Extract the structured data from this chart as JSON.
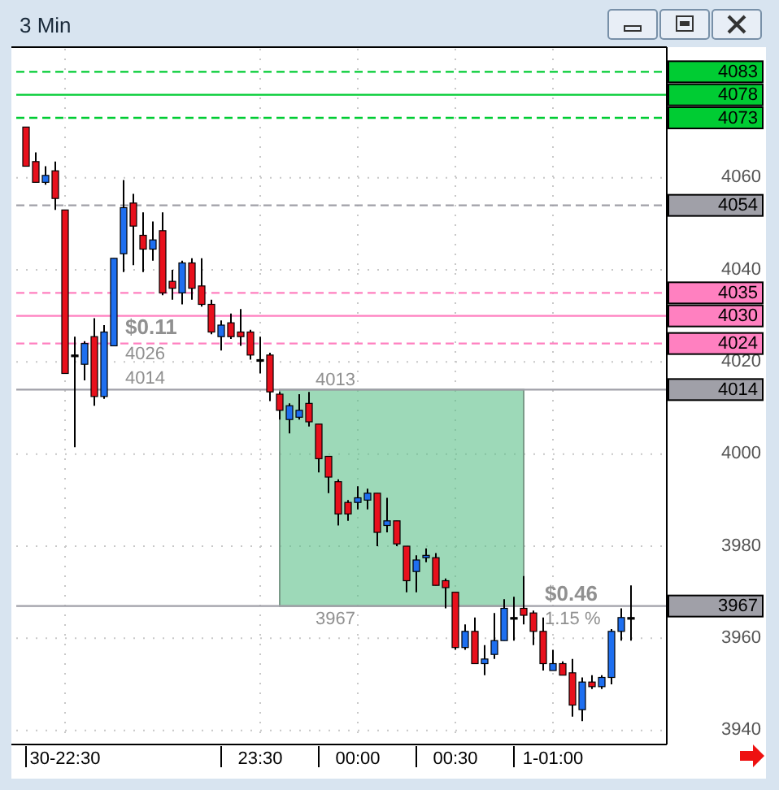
{
  "chart_data": {
    "type": "candlestick",
    "title": "3 Min",
    "categories": [
      null,
      null,
      null,
      null,
      "30-22:30",
      null,
      null,
      null,
      null,
      null,
      null,
      null,
      null,
      null,
      null,
      null,
      null,
      null,
      null,
      null,
      null,
      null,
      null,
      null,
      "23:30",
      null,
      null,
      null,
      null,
      null,
      null,
      null,
      null,
      null,
      "00:00",
      null,
      null,
      null,
      null,
      null,
      null,
      null,
      null,
      null,
      "00:30",
      null,
      null,
      null,
      null,
      null,
      null,
      null,
      null,
      null,
      "1-01:00",
      null,
      null,
      null,
      null,
      null,
      null,
      null,
      null
    ],
    "ohlc": [
      [
        4071,
        4071,
        4062.5,
        4062.5
      ],
      [
        4063.5,
        4065.5,
        4059,
        4059
      ],
      [
        4059,
        4062.5,
        4058.5,
        4060.5
      ],
      [
        4061.5,
        4063.5,
        4053,
        4055.5
      ],
      [
        4053,
        4053,
        4017.5,
        4017.5
      ],
      [
        4021.5,
        4025.5,
        4001.5,
        4021.5
      ],
      [
        4019.5,
        4024.5,
        4016,
        4024
      ],
      [
        4025.5,
        4029.5,
        4010.5,
        4012.5
      ],
      [
        4012.5,
        4028,
        4012,
        4026.5
      ],
      [
        4023.5,
        4042.5,
        4023.5,
        4042.5
      ],
      [
        4043.5,
        4059.5,
        4039.5,
        4053.5
      ],
      [
        4054.5,
        4056.5,
        4041,
        4049.5
      ],
      [
        4047.5,
        4052.5,
        4039.5,
        4044.5
      ],
      [
        4044.5,
        4050.5,
        4042,
        4046.5
      ],
      [
        4048.5,
        4052.5,
        4034.5,
        4035
      ],
      [
        4037.5,
        4040,
        4033.5,
        4036
      ],
      [
        4035,
        4042,
        4032.5,
        4041.5
      ],
      [
        4041.5,
        4042.5,
        4033.5,
        4036
      ],
      [
        4036.5,
        4042.5,
        4032,
        4032.5
      ],
      [
        4032.5,
        4033.5,
        4026,
        4026.5
      ],
      [
        4025.5,
        4029,
        4022.5,
        4028
      ],
      [
        4028.5,
        4030.5,
        4025,
        4025.5
      ],
      [
        4026.5,
        4031.5,
        4023.5,
        4025.5
      ],
      [
        4026.5,
        4027,
        4020.5,
        4021.5
      ],
      [
        4020.5,
        4025.5,
        4017.5,
        4020.5
      ],
      [
        4021.5,
        4022,
        4011.5,
        4013.5
      ],
      [
        4013,
        4013.5,
        4007.5,
        4009.5
      ],
      [
        4007.5,
        4011,
        4004.5,
        4010.5
      ],
      [
        4008,
        4013,
        4007.5,
        4009.5
      ],
      [
        4011,
        4013.5,
        4006,
        4007
      ],
      [
        4006.5,
        4006.5,
        3996,
        3999
      ],
      [
        3999.5,
        3999.5,
        3991.5,
        3995
      ],
      [
        3994,
        3994.5,
        3984.5,
        3987
      ],
      [
        3989.5,
        3990,
        3985.5,
        3987
      ],
      [
        3989.5,
        3993,
        3988,
        3990.5
      ],
      [
        3990,
        3992.5,
        3988,
        3991.5
      ],
      [
        3991.5,
        3991.5,
        3980,
        3983
      ],
      [
        3984.5,
        3990.5,
        3983,
        3985.5
      ],
      [
        3985.5,
        3985.5,
        3980,
        3980.5
      ],
      [
        3980,
        3980,
        3970,
        3972.5
      ],
      [
        3974.5,
        3978,
        3970,
        3977
      ],
      [
        3977.5,
        3979.5,
        3976.5,
        3978
      ],
      [
        3977.5,
        3978.5,
        3971.5,
        3971.5
      ],
      [
        3972.5,
        3973,
        3966.5,
        3971
      ],
      [
        3970,
        3970,
        3957.5,
        3958
      ],
      [
        3958,
        3963,
        3957.5,
        3961.5
      ],
      [
        3961.5,
        3964.5,
        3954.5,
        3954.5
      ],
      [
        3954.5,
        3958.5,
        3952,
        3955.5
      ],
      [
        3956.5,
        3965.5,
        3955.5,
        3959.5
      ],
      [
        3959.5,
        3968.5,
        3959.5,
        3966.5
      ],
      [
        3964.5,
        3969,
        3959.5,
        3964.5
      ],
      [
        3966.5,
        3973.5,
        3963,
        3965
      ],
      [
        3965.5,
        3966,
        3958.5,
        3961.5
      ],
      [
        3961.5,
        3964.5,
        3953,
        3954.5
      ],
      [
        3953,
        3957.5,
        3953,
        3954.5
      ],
      [
        3954.5,
        3955,
        3952,
        3952
      ],
      [
        3952.5,
        3955.5,
        3943,
        3945.5
      ],
      [
        3944.5,
        3951.5,
        3942,
        3950.5
      ],
      [
        3950.5,
        3952,
        3949,
        3949.5
      ],
      [
        3949.5,
        3952,
        3949,
        3951.5
      ],
      [
        3951.5,
        3962,
        3950,
        3961.5
      ],
      [
        3961.5,
        3966.5,
        3959.5,
        3964.5
      ],
      [
        3964.5,
        3971.5,
        3959.5,
        3964.5
      ]
    ],
    "colors": [
      "#e8101c",
      "#e8101c",
      "#1e6ff0",
      "#e8101c",
      "#e8101c",
      "#000000",
      "#1e6ff0",
      "#e8101c",
      "#1e6ff0",
      "#1e6ff0",
      "#1e6ff0",
      "#e8101c",
      "#e8101c",
      "#1e6ff0",
      "#e8101c",
      "#e8101c",
      "#1e6ff0",
      "#e8101c",
      "#e8101c",
      "#e8101c",
      "#1e6ff0",
      "#e8101c",
      "#e8101c",
      "#e8101c",
      "#000000",
      "#e8101c",
      "#e8101c",
      "#1e6ff0",
      "#1e6ff0",
      "#e8101c",
      "#e8101c",
      "#e8101c",
      "#e8101c",
      "#e8101c",
      "#1e6ff0",
      "#1e6ff0",
      "#e8101c",
      "#1e6ff0",
      "#e8101c",
      "#e8101c",
      "#1e6ff0",
      "#1e6ff0",
      "#e8101c",
      "#e8101c",
      "#e8101c",
      "#1e6ff0",
      "#e8101c",
      "#1e6ff0",
      "#1e6ff0",
      "#1e6ff0",
      "#000000",
      "#e8101c",
      "#e8101c",
      "#e8101c",
      "#1e6ff0",
      "#e8101c",
      "#e8101c",
      "#1e6ff0",
      "#e8101c",
      "#1e6ff0",
      "#1e6ff0",
      "#1e6ff0",
      "#000000"
    ],
    "ylim": [
      3938,
      4088
    ],
    "yticks": [
      3940,
      3960,
      3980,
      4000,
      4020,
      4040,
      4060
    ],
    "grid": true,
    "ref_lines": [
      {
        "axis": "y",
        "value": 4083,
        "label": "4083",
        "color": "#00cc33",
        "line_style": "dashed"
      },
      {
        "axis": "y",
        "value": 4078,
        "label": "4078",
        "color": "#00cc33",
        "line_style": "solid"
      },
      {
        "axis": "y",
        "value": 4073,
        "label": "4073",
        "color": "#00cc33",
        "line_style": "dashed"
      },
      {
        "axis": "y",
        "value": 4054,
        "label": "4054",
        "color": "#a0a0a8",
        "line_style": "dashed"
      },
      {
        "axis": "y",
        "value": 4035,
        "label": "4035",
        "color": "#ff80c0",
        "line_style": "dashed"
      },
      {
        "axis": "y",
        "value": 4030,
        "label": "4030",
        "color": "#ff80c0",
        "line_style": "solid"
      },
      {
        "axis": "y",
        "value": 4024,
        "label": "4024",
        "color": "#ff80c0",
        "line_style": "dashed"
      },
      {
        "axis": "y",
        "value": 4014,
        "label": "4014",
        "color": "#a0a0a8",
        "line_style": "solid"
      },
      {
        "axis": "y",
        "value": 3967,
        "label": "3967",
        "color": "#a0a0a8",
        "line_style": "solid"
      }
    ],
    "annotations": [
      "$0.11",
      "4026",
      "4014",
      "4013",
      "3967",
      "$0.46",
      "1.15 %"
    ]
  }
}
